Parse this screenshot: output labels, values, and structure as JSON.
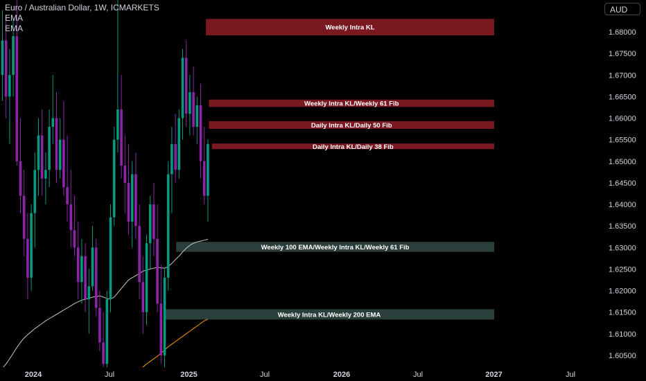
{
  "header": {
    "title": "Euro / Australian Dollar, 1W, ICMARKETS",
    "indicators": [
      "EMA",
      "EMA"
    ]
  },
  "currency_button": "AUD",
  "colors": {
    "background": "#000000",
    "bull": "#089981",
    "bear": "#8e24aa",
    "resistance_zone": "#801922",
    "support_zone": "#2f4642",
    "ema_100": "#c8c8c8",
    "ema_200": "#ff9800",
    "axis_text": "#d1d4dc"
  },
  "chart_data": {
    "type": "candlestick",
    "symbol": "EURAUD",
    "interval": "1W",
    "ylim": [
      1.6015,
      1.6875
    ],
    "y_ticks": [
      "1.68000",
      "1.67500",
      "1.67000",
      "1.66500",
      "1.66000",
      "1.65500",
      "1.65000",
      "1.64500",
      "1.64000",
      "1.63500",
      "1.63000",
      "1.62500",
      "1.62000",
      "1.61500",
      "1.61000",
      "1.60500"
    ],
    "x_ticks": [
      "2024",
      "Jul",
      "2025",
      "Jul",
      "2026",
      "Jul",
      "2027",
      "Jul"
    ],
    "zones": [
      {
        "label": "Weekly Intra KL",
        "low": 1.6792,
        "high": 1.683,
        "kind": "resistance",
        "start": "2025-02-10"
      },
      {
        "label": "Weekly Intra KL/Weekly 61 Fib",
        "low": 1.6626,
        "high": 1.6643,
        "kind": "resistance",
        "start": "2025-02-17"
      },
      {
        "label": "Daily Intra KL/Daily 50 Fib",
        "low": 1.6575,
        "high": 1.6593,
        "kind": "resistance",
        "start": "2025-02-17"
      },
      {
        "label": "Daily Intra KL/Daily 38 Fib",
        "low": 1.6532,
        "high": 1.6541,
        "kind": "resistance",
        "start": "2025-02-24"
      },
      {
        "label": "Weekly 100 EMA/Weekly Intra KL/Weekly 61 Fib",
        "low": 1.629,
        "high": 1.6313,
        "kind": "support",
        "start": "2024-12-02"
      },
      {
        "label": "Weekly Intra KL/Weekly 200 EMA",
        "low": 1.6133,
        "high": 1.6157,
        "kind": "support",
        "start": "2024-11-04"
      }
    ],
    "candles": [
      [
        1.67,
        1.685,
        1.664,
        1.678
      ],
      [
        1.678,
        1.684,
        1.66,
        1.665
      ],
      [
        1.665,
        1.676,
        1.654,
        1.67
      ],
      [
        1.67,
        1.683,
        1.665,
        1.679
      ],
      [
        1.679,
        1.688,
        1.649,
        1.65
      ],
      [
        1.65,
        1.66,
        1.638,
        1.642
      ],
      [
        1.642,
        1.648,
        1.628,
        1.632
      ],
      [
        1.632,
        1.638,
        1.618,
        1.623
      ],
      [
        1.623,
        1.64,
        1.62,
        1.638
      ],
      [
        1.638,
        1.652,
        1.63,
        1.648
      ],
      [
        1.648,
        1.66,
        1.642,
        1.656
      ],
      [
        1.656,
        1.662,
        1.642,
        1.646
      ],
      [
        1.646,
        1.652,
        1.64,
        1.648
      ],
      [
        1.648,
        1.662,
        1.644,
        1.658
      ],
      [
        1.658,
        1.67,
        1.654,
        1.66
      ],
      [
        1.66,
        1.666,
        1.645,
        1.648
      ],
      [
        1.648,
        1.66,
        1.646,
        1.655
      ],
      [
        1.655,
        1.664,
        1.642,
        1.644
      ],
      [
        1.644,
        1.656,
        1.636,
        1.64
      ],
      [
        1.64,
        1.648,
        1.63,
        1.634
      ],
      [
        1.634,
        1.642,
        1.628,
        1.63
      ],
      [
        1.63,
        1.636,
        1.618,
        1.622
      ],
      [
        1.622,
        1.632,
        1.617,
        1.628
      ],
      [
        1.628,
        1.631,
        1.615,
        1.618
      ],
      [
        1.618,
        1.625,
        1.61,
        1.621
      ],
      [
        1.621,
        1.635,
        1.62,
        1.63
      ],
      [
        1.63,
        1.632,
        1.614,
        1.616
      ],
      [
        1.616,
        1.62,
        1.606,
        1.608
      ],
      [
        1.608,
        1.615,
        1.6,
        1.603
      ],
      [
        1.603,
        1.62,
        1.6,
        1.618
      ],
      [
        1.618,
        1.64,
        1.615,
        1.637
      ],
      [
        1.637,
        1.658,
        1.635,
        1.655
      ],
      [
        1.655,
        1.69,
        1.652,
        1.662
      ],
      [
        1.662,
        1.67,
        1.646,
        1.649
      ],
      [
        1.649,
        1.656,
        1.638,
        1.645
      ],
      [
        1.645,
        1.654,
        1.633,
        1.636
      ],
      [
        1.636,
        1.65,
        1.63,
        1.647
      ],
      [
        1.647,
        1.652,
        1.632,
        1.635
      ],
      [
        1.635,
        1.64,
        1.618,
        1.622
      ],
      [
        1.622,
        1.628,
        1.61,
        1.615
      ],
      [
        1.615,
        1.633,
        1.612,
        1.631
      ],
      [
        1.631,
        1.642,
        1.625,
        1.64
      ],
      [
        1.64,
        1.645,
        1.628,
        1.632
      ],
      [
        1.632,
        1.64,
        1.615,
        1.617
      ],
      [
        1.617,
        1.626,
        1.603,
        1.605
      ],
      [
        1.605,
        1.625,
        1.6,
        1.623
      ],
      [
        1.623,
        1.65,
        1.62,
        1.647
      ],
      [
        1.647,
        1.658,
        1.638,
        1.654
      ],
      [
        1.654,
        1.661,
        1.645,
        1.648
      ],
      [
        1.648,
        1.662,
        1.646,
        1.66
      ],
      [
        1.66,
        1.676,
        1.655,
        1.674
      ],
      [
        1.674,
        1.678,
        1.658,
        1.661
      ],
      [
        1.661,
        1.67,
        1.656,
        1.666
      ],
      [
        1.666,
        1.672,
        1.656,
        1.658
      ],
      [
        1.658,
        1.665,
        1.654,
        1.663
      ],
      [
        1.663,
        1.668,
        1.646,
        1.65
      ],
      [
        1.65,
        1.658,
        1.64,
        1.642
      ],
      [
        1.642,
        1.655,
        1.636,
        1.654
      ]
    ],
    "ema_100": [
      1.602,
      1.603,
      1.6042,
      1.6055,
      1.6068,
      1.608,
      1.609,
      1.6098,
      1.6105,
      1.6112,
      1.6118,
      1.6124,
      1.613,
      1.6135,
      1.614,
      1.6145,
      1.615,
      1.6155,
      1.616,
      1.6165,
      1.617,
      1.6174,
      1.6178,
      1.618,
      1.6182,
      1.6185,
      1.6186,
      1.6188,
      1.6185,
      1.6182,
      1.618,
      1.6185,
      1.6195,
      1.6205,
      1.6215,
      1.6225,
      1.623,
      1.6235,
      1.624,
      1.6245,
      1.6248,
      1.625,
      1.6252,
      1.6254,
      1.6253,
      1.6252,
      1.6256,
      1.6263,
      1.6272,
      1.628,
      1.629,
      1.6298,
      1.6305,
      1.631,
      1.6313,
      1.6315,
      1.6317,
      1.6319
    ],
    "ema_200_start_index": 35,
    "ema_200": [
      1.6,
      1.6005,
      1.6011,
      1.6017,
      1.6023,
      1.603,
      1.6036,
      1.6042,
      1.6048,
      1.6055,
      1.6062,
      1.607,
      1.6076,
      1.6082,
      1.6088,
      1.6094,
      1.61,
      1.6106,
      1.6112,
      1.6118,
      1.6124,
      1.613,
      1.6134
    ]
  }
}
